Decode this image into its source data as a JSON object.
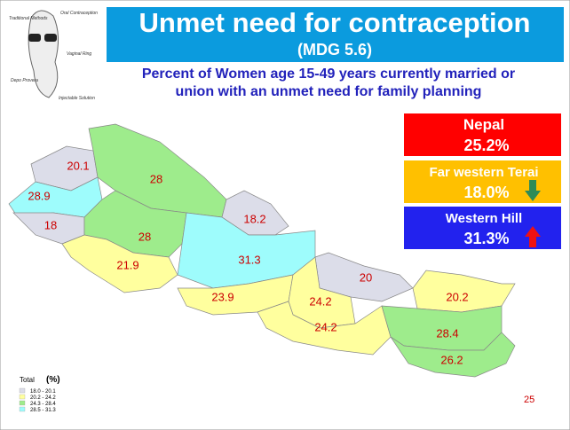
{
  "header": {
    "title": "Unmet need for contraception",
    "subtitle": "(MDG 5.6)"
  },
  "description": [
    "Percent of Women age 15-49 years  currently married or",
    "union with an unmet need for family planning"
  ],
  "clipart": {
    "labels": [
      "Oral Contraception",
      "Traditional Methods",
      "Vaginal Ring",
      "Depo Provera",
      "Injectable Solution"
    ]
  },
  "stats": [
    {
      "name": "Nepal",
      "value": "25.2%",
      "color": "#ff0000"
    },
    {
      "name": "Far western Terai",
      "value": "18.0%",
      "color": "#ffc000",
      "trend": "down",
      "trend_color": "#2e8b57"
    },
    {
      "name": "Western Hill",
      "value": "31.3%",
      "color": "#2222ee",
      "trend": "up",
      "trend_color": "#ee1111"
    }
  ],
  "regions": [
    {
      "value": 20.1,
      "color": "#dcdde9"
    },
    {
      "value": 28.0,
      "color": "#9eec8c"
    },
    {
      "value": 28.9,
      "color": "#9efcfc"
    },
    {
      "value": 18.0,
      "color": "#dcdde9"
    },
    {
      "value": 28.0,
      "color": "#9eec8c"
    },
    {
      "value": 18.2,
      "color": "#dcdde9"
    },
    {
      "value": 21.9,
      "color": "#ffff9e"
    },
    {
      "value": 31.3,
      "color": "#9efcfc"
    },
    {
      "value": 23.9,
      "color": "#ffff9e"
    },
    {
      "value": 20.0,
      "color": "#dcdde9"
    },
    {
      "value": 24.2,
      "color": "#ffff9e"
    },
    {
      "value": 24.2,
      "color": "#ffff9e"
    },
    {
      "value": 20.2,
      "color": "#ffff9e"
    },
    {
      "value": 28.4,
      "color": "#9eec8c"
    },
    {
      "value": 26.2,
      "color": "#9eec8c"
    }
  ],
  "legend": {
    "title": "Total",
    "unit": "(%)",
    "items": [
      {
        "label": "18.0 - 20.1",
        "color": "#dcdde9"
      },
      {
        "label": "20.2 - 24.2",
        "color": "#ffff9e"
      },
      {
        "label": "24.3 - 28.4",
        "color": "#9eec8c"
      },
      {
        "label": "28.5 - 31.3",
        "color": "#9efcfc"
      }
    ]
  },
  "page_number": "25"
}
